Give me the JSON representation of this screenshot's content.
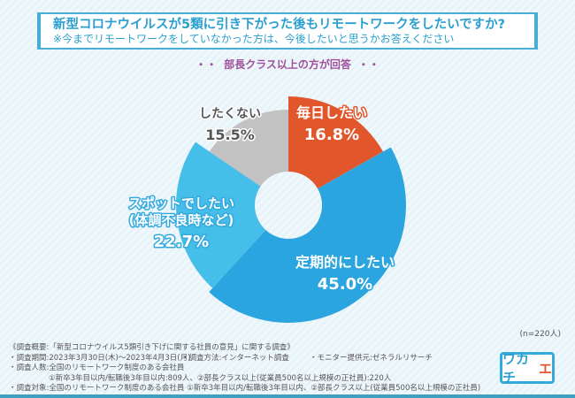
{
  "title": {
    "question": "新型コロナウイルスが5類に引き下がった後もリモートワークをしたいですか?",
    "note": "※今までリモートワークをしていなかった方は、今後したいと思うかお答えください"
  },
  "subtitle": {
    "dots_left": "・・",
    "text": "部長クラス以上の方が回答",
    "dots_right": "・・"
  },
  "chart_data": {
    "type": "pie",
    "variant": "donut",
    "start": "top",
    "direction": "clockwise",
    "slices": [
      {
        "label": "毎日したい",
        "value": 16.8,
        "display": "16.8%",
        "color": "#e2562b"
      },
      {
        "label": "定期的にしたい",
        "value": 45.0,
        "display": "45.0%",
        "color": "#2ba5e0"
      },
      {
        "label": "スポットでしたい",
        "label2": "(体調不良時など)",
        "value": 22.7,
        "display": "22.7%",
        "color": "#45bee9"
      },
      {
        "label": "したくない",
        "value": 15.5,
        "display": "15.5%",
        "color": "#c2c2c2"
      }
    ],
    "sample": "(n=220人)"
  },
  "footer": {
    "overview": "《調査概要:「新型コロナウイルス5類引き下げに関する社員の意見」に関する調査》",
    "period": "・調査期間:2023年3月30日(木)〜2023年4月3日(月)",
    "method": "・調査方法:インターネット調査",
    "provider": "・モニター提供元:ゼネラルリサーチ",
    "people": "・調査人数:全国のリモートワーク制度のある会社員",
    "people_detail": "①新卒3年目以内/転職後3年目以内:809人、②部長クラス以上(従業員500名以上規模の正社員):220人",
    "target": "・調査対象:全国のリモートワーク制度のある会社員 ①新卒3年目以内/転職後3年目以内、②部長クラス以上(従業員500名以上規模の正社員)"
  },
  "logo": {
    "text": "ワカチ",
    "accent": "エ"
  }
}
